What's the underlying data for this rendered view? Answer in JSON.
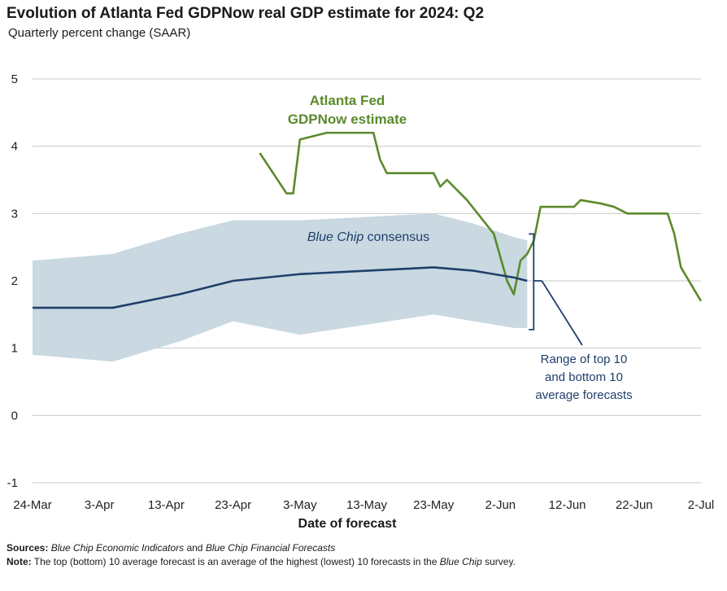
{
  "title": "Evolution of Atlanta Fed GDPNow real GDP estimate for 2024: Q2",
  "subtitle": "Quarterly percent change (SAAR)",
  "chart_data": {
    "type": "line",
    "title": "Evolution of Atlanta Fed GDPNow real GDP estimate for 2024: Q2",
    "subtitle": "Quarterly percent change (SAAR)",
    "xlabel": "Date of forecast",
    "ylabel": "",
    "ylim": [
      -1,
      5
    ],
    "y_ticks": [
      "5",
      "4",
      "3",
      "2",
      "1",
      "0",
      "-1"
    ],
    "x_range_days": [
      0,
      100
    ],
    "x_ticks": [
      {
        "label": "24-Mar",
        "day": 0
      },
      {
        "label": "3-Apr",
        "day": 10
      },
      {
        "label": "13-Apr",
        "day": 20
      },
      {
        "label": "23-Apr",
        "day": 30
      },
      {
        "label": "3-May",
        "day": 40
      },
      {
        "label": "13-May",
        "day": 50
      },
      {
        "label": "23-May",
        "day": 60
      },
      {
        "label": "2-Jun",
        "day": 70
      },
      {
        "label": "12-Jun",
        "day": 80
      },
      {
        "label": "22-Jun",
        "day": 90
      },
      {
        "label": "2-Jul",
        "day": 100
      }
    ],
    "grid": true,
    "series": [
      {
        "name": "Atlanta Fed GDPNow estimate",
        "color": "#5b8a2b",
        "points": [
          [
            34,
            3.9
          ],
          [
            38,
            3.3
          ],
          [
            39,
            3.3
          ],
          [
            40,
            4.1
          ],
          [
            42,
            4.15
          ],
          [
            44,
            4.2
          ],
          [
            48,
            4.2
          ],
          [
            51,
            4.2
          ],
          [
            52,
            3.8
          ],
          [
            53,
            3.6
          ],
          [
            55,
            3.6
          ],
          [
            60,
            3.6
          ],
          [
            61,
            3.4
          ],
          [
            62,
            3.5
          ],
          [
            65,
            3.2
          ],
          [
            69,
            2.7
          ],
          [
            71,
            2.0
          ],
          [
            72,
            1.8
          ],
          [
            73,
            2.3
          ],
          [
            74,
            2.4
          ],
          [
            75,
            2.6
          ],
          [
            76,
            3.1
          ],
          [
            81,
            3.1
          ],
          [
            82,
            3.2
          ],
          [
            85,
            3.15
          ],
          [
            87,
            3.1
          ],
          [
            89,
            3.0
          ],
          [
            91,
            3.0
          ],
          [
            94,
            3.0
          ],
          [
            95,
            3.0
          ],
          [
            96,
            2.7
          ],
          [
            97,
            2.2
          ],
          [
            100,
            1.7
          ]
        ]
      },
      {
        "name": "Blue Chip consensus",
        "color": "#1f3f6b",
        "points": [
          [
            0,
            1.6
          ],
          [
            12,
            1.6
          ],
          [
            22,
            1.8
          ],
          [
            30,
            2.0
          ],
          [
            40,
            2.1
          ],
          [
            50,
            2.15
          ],
          [
            60,
            2.2
          ],
          [
            66,
            2.15
          ],
          [
            72,
            2.05
          ],
          [
            74,
            2.0
          ]
        ]
      }
    ],
    "band": {
      "name": "Range of top 10 and bottom 10 average forecasts",
      "color": "#c9d8e1",
      "upper": [
        [
          0,
          2.3
        ],
        [
          12,
          2.4
        ],
        [
          22,
          2.7
        ],
        [
          30,
          2.9
        ],
        [
          40,
          2.9
        ],
        [
          50,
          2.95
        ],
        [
          60,
          3.0
        ],
        [
          66,
          2.85
        ],
        [
          72,
          2.65
        ],
        [
          74,
          2.6
        ]
      ],
      "lower": [
        [
          0,
          0.9
        ],
        [
          12,
          0.8
        ],
        [
          22,
          1.1
        ],
        [
          30,
          1.4
        ],
        [
          40,
          1.2
        ],
        [
          50,
          1.35
        ],
        [
          60,
          1.5
        ],
        [
          66,
          1.4
        ],
        [
          72,
          1.3
        ],
        [
          74,
          1.3
        ]
      ]
    },
    "annotations": {
      "gdpnow_label_line1": "Atlanta Fed",
      "gdpnow_label_line2": "GDPNow estimate",
      "consensus_label_italic": "Blue Chip",
      "consensus_label_rest": " consensus",
      "range_label_line1": "Range of top 10",
      "range_label_line2": "and bottom 10",
      "range_label_line3": "average forecasts"
    },
    "colors": {
      "gdpnow": "#5b8a2b",
      "consensus": "#1f3f6b",
      "band": "#c9d8e1",
      "grid": "#c8c8c8",
      "axis_text": "#222222"
    }
  },
  "footnotes": {
    "sources_label": "Sources:",
    "sources_part1": "Blue Chip Economic Indicators",
    "sources_part2": " and ",
    "sources_part3": "Blue Chip Financial Forecasts",
    "note_label": "Note:",
    "note_part1": " The top (bottom) 10 average forecast is an average of the highest (lowest) 10 forecasts in the ",
    "note_part2": "Blue Chip",
    "note_part3": " survey."
  }
}
